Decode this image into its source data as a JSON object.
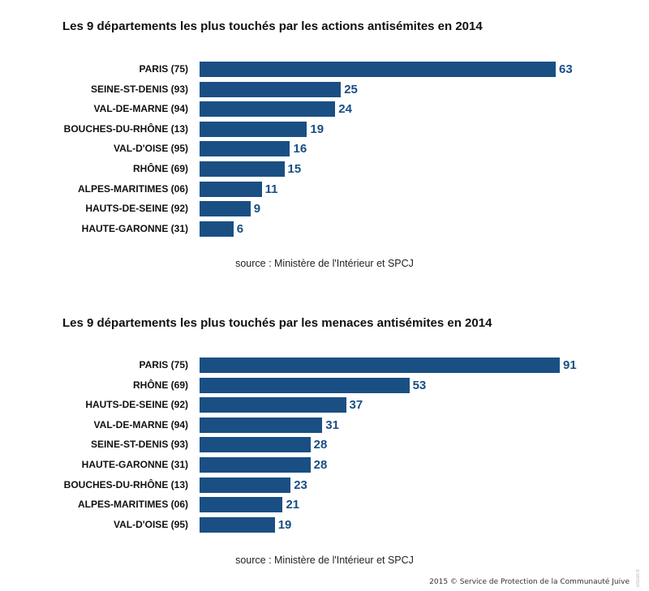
{
  "chart_data": [
    {
      "type": "bar",
      "orientation": "horizontal",
      "title": "Les 9 départements les plus touchés par les actions antisémites en 2014",
      "categories": [
        "PARIS (75)",
        "SEINE-ST-DENIS (93)",
        "VAL-DE-MARNE (94)",
        "BOUCHES-DU-RHÔNE (13)",
        "VAL-D'OISE (95)",
        "RHÔNE (69)",
        "ALPES-MARITIMES (06)",
        "HAUTS-DE-SEINE (92)",
        "HAUTE-GARONNE (31)"
      ],
      "values": [
        63,
        25,
        24,
        19,
        16,
        15,
        11,
        9,
        6
      ],
      "xlabel": "",
      "ylabel": "",
      "xlim": [
        0,
        63
      ],
      "grid": false,
      "source": "source : Ministère de l'Intérieur et SPCJ",
      "bar_color": "#1a4f84"
    },
    {
      "type": "bar",
      "orientation": "horizontal",
      "title": "Les 9 départements les plus touchés par les menaces antisémites en 2014",
      "categories": [
        "PARIS (75)",
        "RHÔNE (69)",
        "HAUTS-DE-SEINE (92)",
        "VAL-DE-MARNE (94)",
        "SEINE-ST-DENIS (93)",
        "HAUTE-GARONNE (31)",
        "BOUCHES-DU-RHÔNE (13)",
        "ALPES-MARITIMES (06)",
        "VAL-D'OISE (95)"
      ],
      "values": [
        91,
        53,
        37,
        31,
        28,
        28,
        23,
        21,
        19
      ],
      "xlabel": "",
      "ylabel": "",
      "xlim": [
        0,
        91
      ],
      "grid": false,
      "source": "source : Ministère de l'Intérieur et SPCJ",
      "bar_color": "#1a4f84"
    }
  ],
  "footer": {
    "copyright": "2015 © Service de Protection de la Communauté Juive",
    "watermark": "Shoah.fr"
  }
}
